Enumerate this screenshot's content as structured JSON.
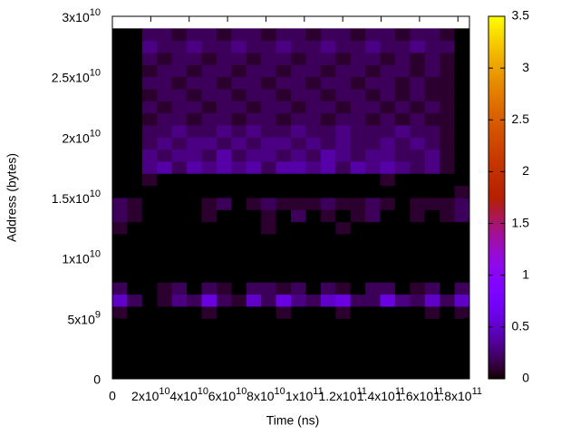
{
  "chart_data": {
    "type": "heatmap",
    "x_label": "Time (ns)",
    "y_label": "Address (bytes)",
    "xlim": [
      0,
      186000000000
    ],
    "ylim": [
      0,
      30000000000
    ],
    "zlim": [
      0,
      3.5
    ],
    "xticks": [
      0,
      {
        "value": 20000000000,
        "label": "2x10",
        "exponent": "10"
      },
      {
        "value": 40000000000,
        "label": "4x10",
        "exponent": "10"
      },
      {
        "value": 60000000000,
        "label": "6x10",
        "exponent": "10"
      },
      {
        "value": 80000000000,
        "label": "8x10",
        "exponent": "10"
      },
      {
        "value": 100000000000,
        "label": "1x10",
        "exponent": "11"
      },
      {
        "value": 120000000000,
        "label": "1.2x10",
        "exponent": "11"
      },
      {
        "value": 140000000000,
        "label": "1.4x10",
        "exponent": "11"
      },
      {
        "value": 160000000000,
        "label": "1.6x10",
        "exponent": "11"
      },
      {
        "value": 180000000000,
        "label": "1.8x10",
        "exponent": "11"
      }
    ],
    "yticks": [
      0,
      {
        "value": 5000000000,
        "label": "5x10",
        "exponent": "9"
      },
      {
        "value": 10000000000,
        "label": "1x10",
        "exponent": "10"
      },
      {
        "value": 15000000000,
        "label": "1.5x10",
        "exponent": "10"
      },
      {
        "value": 20000000000,
        "label": "2x10",
        "exponent": "10"
      },
      {
        "value": 25000000000,
        "label": "2.5x10",
        "exponent": "10"
      },
      {
        "value": 30000000000,
        "label": "3x10",
        "exponent": "10"
      }
    ],
    "zticks": [
      0,
      0.5,
      1,
      1.5,
      2,
      2.5,
      3,
      3.5
    ],
    "xbins": [
      0,
      7750000000.0,
      15500000000.0,
      23250000000.0,
      31000000000.0,
      38750000000.0,
      46500000000.0,
      54250000000.0,
      62000000000.0,
      69750000000.0,
      77500000000.0,
      85250000000.0,
      93000000000.0,
      100750000000.0,
      108500000000.0,
      116250000000.0,
      124000000000.0,
      131750000000.0,
      139500000000.0,
      147250000000.0,
      155000000000.0,
      162750000000.0,
      170500000000.0,
      178250000000.0,
      186000000000.0
    ],
    "ybins": [
      0,
      1000000000.0,
      2000000000.0,
      3000000000.0,
      4000000000.0,
      5000000000.0,
      6000000000.0,
      7000000000.0,
      8000000000.0,
      9000000000.0,
      10000000000.0,
      11000000000.0,
      12000000000.0,
      13000000000.0,
      14000000000.0,
      15000000000.0,
      16000000000.0,
      17000000000.0,
      18000000000.0,
      19000000000.0,
      20000000000.0,
      21000000000.0,
      22000000000.0,
      23000000000.0,
      24000000000.0,
      25000000000.0,
      26000000000.0,
      27000000000.0,
      28000000000.0,
      29000000000.0
    ],
    "z": [
      [
        0,
        0,
        0,
        0,
        0,
        0,
        0,
        0,
        0,
        0,
        0,
        0,
        0,
        0,
        0,
        0,
        0,
        0,
        0,
        0,
        0,
        0,
        0,
        0
      ],
      [
        0,
        0,
        0,
        0,
        0,
        0,
        0,
        0,
        0,
        0,
        0,
        0,
        0,
        0,
        0,
        0,
        0,
        0,
        0,
        0,
        0,
        0,
        0,
        0
      ],
      [
        0,
        0,
        0,
        0,
        0,
        0,
        0,
        0,
        0,
        0,
        0,
        0,
        0,
        0,
        0,
        0,
        0,
        0,
        0,
        0,
        0,
        0,
        0,
        0
      ],
      [
        0,
        0,
        0,
        0,
        0,
        0,
        0,
        0,
        0,
        0,
        0,
        0,
        0,
        0,
        0,
        0,
        0,
        0,
        0,
        0,
        0,
        0,
        0,
        0
      ],
      [
        0,
        0,
        0,
        0,
        0,
        0,
        0,
        0,
        0,
        0,
        0,
        0,
        0,
        0,
        0,
        0,
        0,
        0,
        0,
        0,
        0,
        0,
        0,
        0
      ],
      [
        0.1,
        0,
        0,
        0,
        0,
        0,
        0.1,
        0,
        0,
        0,
        0,
        0.1,
        0,
        0,
        0,
        0.1,
        0,
        0,
        0,
        0,
        0,
        0.1,
        0,
        0.1
      ],
      [
        0.5,
        0.2,
        0,
        0.1,
        0.3,
        0.2,
        0.6,
        0.2,
        0.1,
        0.5,
        0.2,
        0.6,
        0.3,
        0.2,
        0.5,
        0.6,
        0.2,
        0.2,
        0.6,
        0.3,
        0.2,
        0.5,
        0.2,
        0.5
      ],
      [
        0.2,
        0,
        0,
        0.1,
        0.2,
        0,
        0.2,
        0.1,
        0,
        0.2,
        0.2,
        0.1,
        0.2,
        0,
        0.2,
        0.1,
        0,
        0.2,
        0.2,
        0,
        0.1,
        0.2,
        0,
        0.2
      ],
      [
        0,
        0,
        0,
        0,
        0,
        0,
        0,
        0,
        0,
        0,
        0,
        0,
        0,
        0,
        0,
        0,
        0,
        0,
        0,
        0,
        0,
        0,
        0,
        0
      ],
      [
        0,
        0,
        0,
        0,
        0,
        0,
        0,
        0,
        0,
        0,
        0,
        0,
        0,
        0,
        0,
        0,
        0,
        0,
        0,
        0,
        0,
        0,
        0,
        0
      ],
      [
        0,
        0,
        0,
        0,
        0,
        0,
        0,
        0,
        0,
        0,
        0,
        0,
        0,
        0,
        0,
        0,
        0,
        0,
        0,
        0,
        0,
        0,
        0,
        0
      ],
      [
        0,
        0,
        0,
        0,
        0,
        0,
        0,
        0,
        0,
        0,
        0,
        0,
        0,
        0,
        0,
        0,
        0,
        0,
        0,
        0,
        0,
        0,
        0,
        0
      ],
      [
        0.1,
        0,
        0,
        0,
        0,
        0,
        0,
        0,
        0,
        0,
        0.1,
        0,
        0,
        0,
        0,
        0.1,
        0,
        0,
        0,
        0,
        0,
        0,
        0,
        0
      ],
      [
        0.2,
        0.1,
        0,
        0,
        0,
        0,
        0.1,
        0,
        0,
        0,
        0.1,
        0,
        0.2,
        0,
        0.1,
        0,
        0.1,
        0.2,
        0,
        0,
        0.1,
        0,
        0.1,
        0.2
      ],
      [
        0.2,
        0.1,
        0,
        0,
        0,
        0,
        0.1,
        0.2,
        0,
        0.1,
        0.2,
        0.1,
        0.1,
        0.1,
        0.2,
        0.1,
        0.1,
        0.2,
        0.1,
        0,
        0.1,
        0.1,
        0.1,
        0.2
      ],
      [
        0,
        0,
        0,
        0,
        0,
        0,
        0,
        0,
        0,
        0,
        0,
        0,
        0,
        0,
        0,
        0,
        0,
        0,
        0,
        0,
        0,
        0,
        0,
        0.1
      ],
      [
        0,
        0,
        0.1,
        0,
        0,
        0,
        0,
        0,
        0,
        0,
        0,
        0,
        0,
        0,
        0,
        0,
        0,
        0,
        0.1,
        0,
        0,
        0,
        0,
        0
      ],
      [
        0,
        0,
        0.3,
        0.4,
        0.2,
        0.4,
        0.3,
        0.4,
        0.3,
        0.4,
        0.2,
        0.4,
        0.4,
        0.3,
        0.4,
        0.2,
        0.4,
        0.3,
        0.4,
        0.3,
        0.2,
        0.3,
        0.1,
        0
      ],
      [
        0,
        0,
        0.3,
        0.2,
        0.3,
        0.3,
        0.2,
        0.4,
        0.2,
        0.3,
        0.3,
        0.2,
        0.3,
        0.2,
        0.4,
        0.3,
        0.2,
        0.3,
        0.3,
        0.2,
        0.2,
        0.3,
        0.1,
        0
      ],
      [
        0,
        0,
        0.2,
        0.3,
        0.2,
        0.3,
        0.3,
        0.2,
        0.3,
        0.2,
        0.3,
        0.3,
        0.2,
        0.3,
        0.2,
        0.3,
        0.2,
        0.2,
        0.3,
        0.2,
        0.3,
        0.2,
        0.1,
        0
      ],
      [
        0,
        0,
        0.2,
        0.2,
        0.3,
        0.2,
        0.2,
        0.3,
        0.2,
        0.3,
        0.2,
        0.2,
        0.3,
        0.2,
        0.2,
        0.3,
        0.2,
        0.2,
        0.2,
        0.3,
        0.2,
        0.2,
        0.1,
        0
      ],
      [
        0,
        0,
        0.1,
        0.2,
        0.2,
        0.1,
        0.2,
        0.2,
        0.1,
        0.2,
        0.2,
        0.1,
        0.2,
        0.2,
        0.1,
        0.2,
        0.2,
        0.1,
        0.2,
        0.1,
        0.2,
        0.1,
        0.1,
        0
      ],
      [
        0,
        0,
        0.2,
        0.1,
        0.2,
        0.2,
        0.1,
        0.2,
        0.2,
        0.1,
        0.2,
        0.2,
        0.1,
        0.2,
        0.2,
        0.1,
        0.2,
        0.2,
        0.1,
        0.2,
        0.1,
        0.2,
        0.1,
        0
      ],
      [
        0,
        0,
        0.1,
        0.2,
        0.2,
        0.1,
        0.2,
        0.2,
        0.1,
        0.2,
        0.2,
        0.1,
        0.2,
        0.2,
        0.1,
        0.2,
        0.2,
        0.1,
        0.2,
        0.1,
        0.2,
        0.1,
        0.1,
        0
      ],
      [
        0,
        0,
        0.2,
        0.2,
        0.1,
        0.2,
        0.2,
        0.1,
        0.2,
        0.2,
        0.1,
        0.2,
        0.2,
        0.1,
        0.2,
        0.2,
        0.1,
        0.2,
        0.2,
        0.1,
        0.2,
        0.1,
        0.1,
        0
      ],
      [
        0,
        0,
        0.1,
        0.2,
        0.2,
        0.1,
        0.2,
        0.2,
        0.1,
        0.2,
        0.2,
        0.1,
        0.2,
        0.2,
        0.1,
        0.2,
        0.2,
        0.1,
        0.2,
        0.2,
        0.1,
        0.2,
        0.1,
        0
      ],
      [
        0,
        0,
        0.2,
        0.1,
        0.2,
        0.2,
        0.1,
        0.2,
        0.2,
        0.1,
        0.2,
        0.2,
        0.1,
        0.2,
        0.2,
        0.1,
        0.2,
        0.2,
        0.1,
        0.2,
        0.1,
        0.2,
        0.1,
        0
      ],
      [
        0,
        0,
        0.3,
        0.2,
        0.2,
        0.3,
        0.2,
        0.2,
        0.3,
        0.2,
        0.2,
        0.3,
        0.2,
        0.2,
        0.3,
        0.2,
        0.2,
        0.3,
        0.2,
        0.2,
        0.3,
        0.2,
        0.2,
        0
      ],
      [
        0,
        0,
        0.2,
        0.2,
        0.1,
        0.2,
        0.2,
        0.1,
        0.2,
        0.2,
        0.1,
        0.2,
        0.2,
        0.1,
        0.2,
        0.2,
        0.1,
        0.2,
        0.2,
        0.1,
        0.2,
        0.2,
        0.1,
        0
      ]
    ]
  }
}
